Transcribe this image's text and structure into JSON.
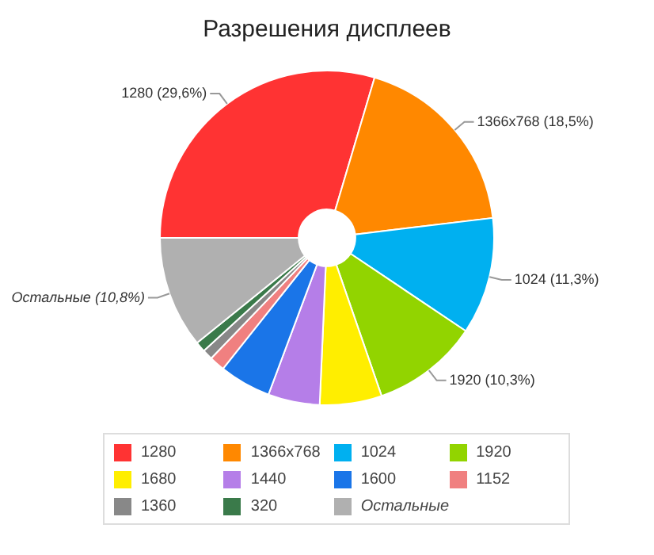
{
  "chart_data": {
    "type": "donut",
    "title": "Разрешения дисплеев",
    "categories": [
      "1280",
      "1366x768",
      "1024",
      "1920",
      "1680",
      "1440",
      "1600",
      "1152",
      "1360",
      "320",
      "Остальные"
    ],
    "values": [
      29.6,
      18.5,
      11.3,
      10.3,
      6,
      5,
      5,
      1.5,
      1,
      1,
      10.8
    ],
    "colors": [
      "#ff3333",
      "#ff8800",
      "#00b0f0",
      "#92d400",
      "#ffee00",
      "#b57ee8",
      "#1a75e8",
      "#f08080",
      "#888888",
      "#3a7a4a",
      "#b0b0b0"
    ],
    "value_labels": [
      "1280 (29,6%)",
      "1366x768 (18,5%)",
      "1024 (11,3%)",
      "1920 (10,3%)",
      null,
      null,
      null,
      null,
      null,
      null,
      "Остальные (10,8%)"
    ],
    "legend": "bottom"
  }
}
